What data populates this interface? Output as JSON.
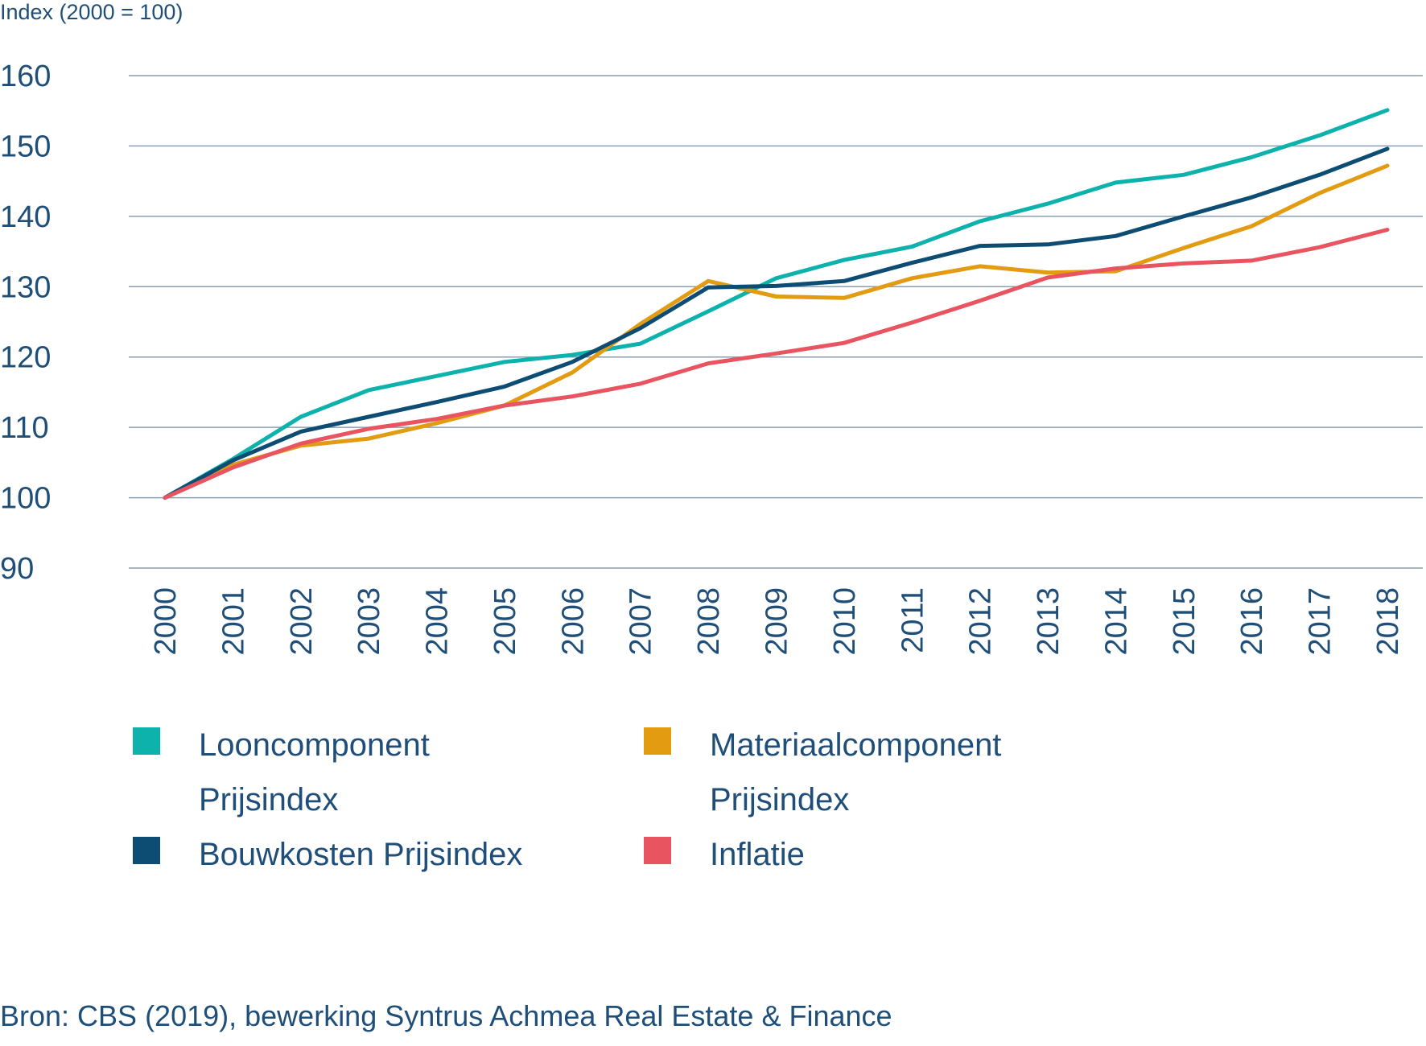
{
  "chart_data": {
    "type": "line",
    "ylabel": "Index (2000 = 100)",
    "ylim": [
      90,
      160
    ],
    "yticks": [
      90,
      100,
      110,
      120,
      130,
      140,
      150,
      160
    ],
    "x": [
      "2000",
      "2001",
      "2002",
      "2003",
      "2004",
      "2005",
      "2006",
      "2007",
      "2008",
      "2009",
      "2010",
      "2011",
      "2012",
      "2013",
      "2014",
      "2015",
      "2016",
      "2017",
      "2018"
    ],
    "grid": true,
    "legend_position": "bottom",
    "series": [
      {
        "name": "Looncomponent Prijsindex",
        "color": "#0eb2ac",
        "values": [
          100,
          105.5,
          111.5,
          115.3,
          117.3,
          119.3,
          120.3,
          121.9,
          126.5,
          131.2,
          133.8,
          135.7,
          139.3,
          141.8,
          144.8,
          145.9,
          148.4,
          151.5,
          155.1
        ]
      },
      {
        "name": "Materiaalcomponent Prijsindex",
        "color": "#e39b12",
        "values": [
          100,
          104.7,
          107.4,
          108.4,
          110.6,
          113.1,
          117.8,
          124.7,
          130.8,
          128.6,
          128.4,
          131.2,
          132.9,
          132.0,
          132.2,
          135.5,
          138.6,
          143.3,
          147.2
        ]
      },
      {
        "name": "Bouwkosten Prijsindex",
        "color": "#0d4c73",
        "values": [
          100,
          105.3,
          109.4,
          111.5,
          113.6,
          115.8,
          119.3,
          124.1,
          129.9,
          130.1,
          130.8,
          133.4,
          135.8,
          136.0,
          137.2,
          140.0,
          142.7,
          145.9,
          149.6
        ]
      },
      {
        "name": "Inflatie",
        "color": "#e8545f",
        "values": [
          100,
          104.3,
          107.7,
          109.8,
          111.2,
          113.1,
          114.4,
          116.2,
          119.1,
          120.5,
          122.0,
          124.9,
          128.0,
          131.3,
          132.6,
          133.3,
          133.7,
          135.6,
          138.1
        ]
      }
    ]
  },
  "legend": {
    "items": [
      {
        "label": "Looncomponent Prijsindex",
        "color": "#0eb2ac"
      },
      {
        "label": "Materiaalcomponent Prijsindex",
        "color": "#e39b12"
      },
      {
        "label": "Bouwkosten Prijsindex",
        "color": "#0d4c73"
      },
      {
        "label": "Inflatie",
        "color": "#e8545f"
      }
    ]
  },
  "source": "Bron: CBS (2019), bewerking Syntrus Achmea Real Estate & Finance"
}
